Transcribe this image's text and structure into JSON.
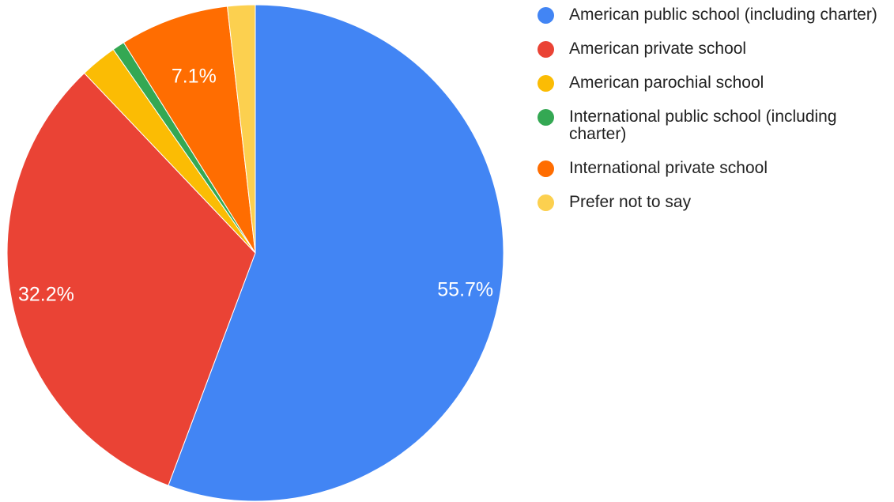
{
  "chart_data": {
    "type": "pie",
    "start_angle_deg": 0,
    "direction": "clockwise",
    "legend_position": "right",
    "slices": [
      {
        "label": "American public school (including charter)",
        "value": 55.7,
        "display": "55.7%",
        "color": "#4285F4"
      },
      {
        "label": "American private school",
        "value": 32.2,
        "display": "32.2%",
        "color": "#EA4335"
      },
      {
        "label": "American parochial school",
        "value": 2.4,
        "display": "",
        "color": "#FBBC04"
      },
      {
        "label": "International public school (including charter)",
        "value": 0.8,
        "display": "",
        "color": "#34A853"
      },
      {
        "label": "International private school",
        "value": 7.1,
        "display": "7.1%",
        "color": "#FF6D01"
      },
      {
        "label": "Prefer not to say",
        "value": 1.8,
        "display": "",
        "color": "#FCD04F"
      }
    ]
  }
}
